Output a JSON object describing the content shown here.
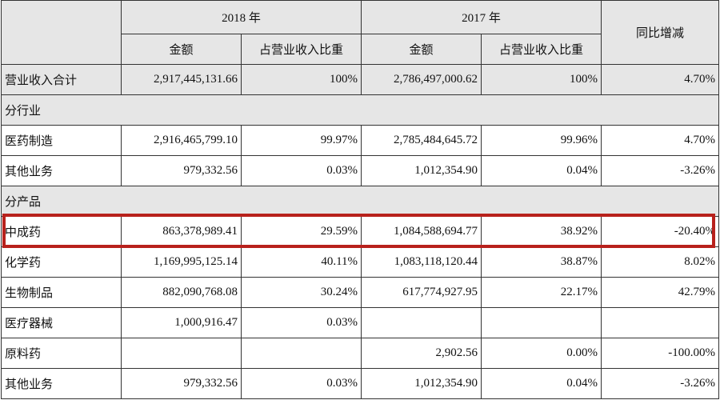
{
  "header": {
    "years": [
      "2018 年",
      "2017 年"
    ],
    "sub": [
      "金额",
      "占营业收入比重",
      "金额",
      "占营业收入比重"
    ],
    "change": "同比增减"
  },
  "table": {
    "rows": [
      [
        "营业收入合计",
        "2,917,445,131.66",
        "100%",
        "2,786,497,000.62",
        "100%",
        "4.70%"
      ],
      [
        "分行业"
      ],
      [
        "医药制造",
        "2,916,465,799.10",
        "99.97%",
        "2,785,484,645.72",
        "99.96%",
        "4.70%"
      ],
      [
        "其他业务",
        "979,332.56",
        "0.03%",
        "1,012,354.90",
        "0.04%",
        "-3.26%"
      ],
      [
        "分产品"
      ],
      [
        "中成药",
        "863,378,989.41",
        "29.59%",
        "1,084,588,694.77",
        "38.92%",
        "-20.40%"
      ],
      [
        "化学药",
        "1,169,995,125.14",
        "40.11%",
        "1,083,118,120.44",
        "38.87%",
        "8.02%"
      ],
      [
        "生物制品",
        "882,090,768.08",
        "30.24%",
        "617,774,927.95",
        "22.17%",
        "42.79%"
      ],
      [
        "医疗器械",
        "1,000,916.47",
        "0.03%",
        null,
        null,
        null
      ],
      [
        "原料药",
        null,
        null,
        "2,902.56",
        "0.00%",
        "-100.00%"
      ],
      [
        "其他业务",
        "979,332.56",
        "0.03%",
        "1,012,354.90",
        "0.04%",
        "-3.26%"
      ]
    ],
    "highlight_row": 5
  }
}
